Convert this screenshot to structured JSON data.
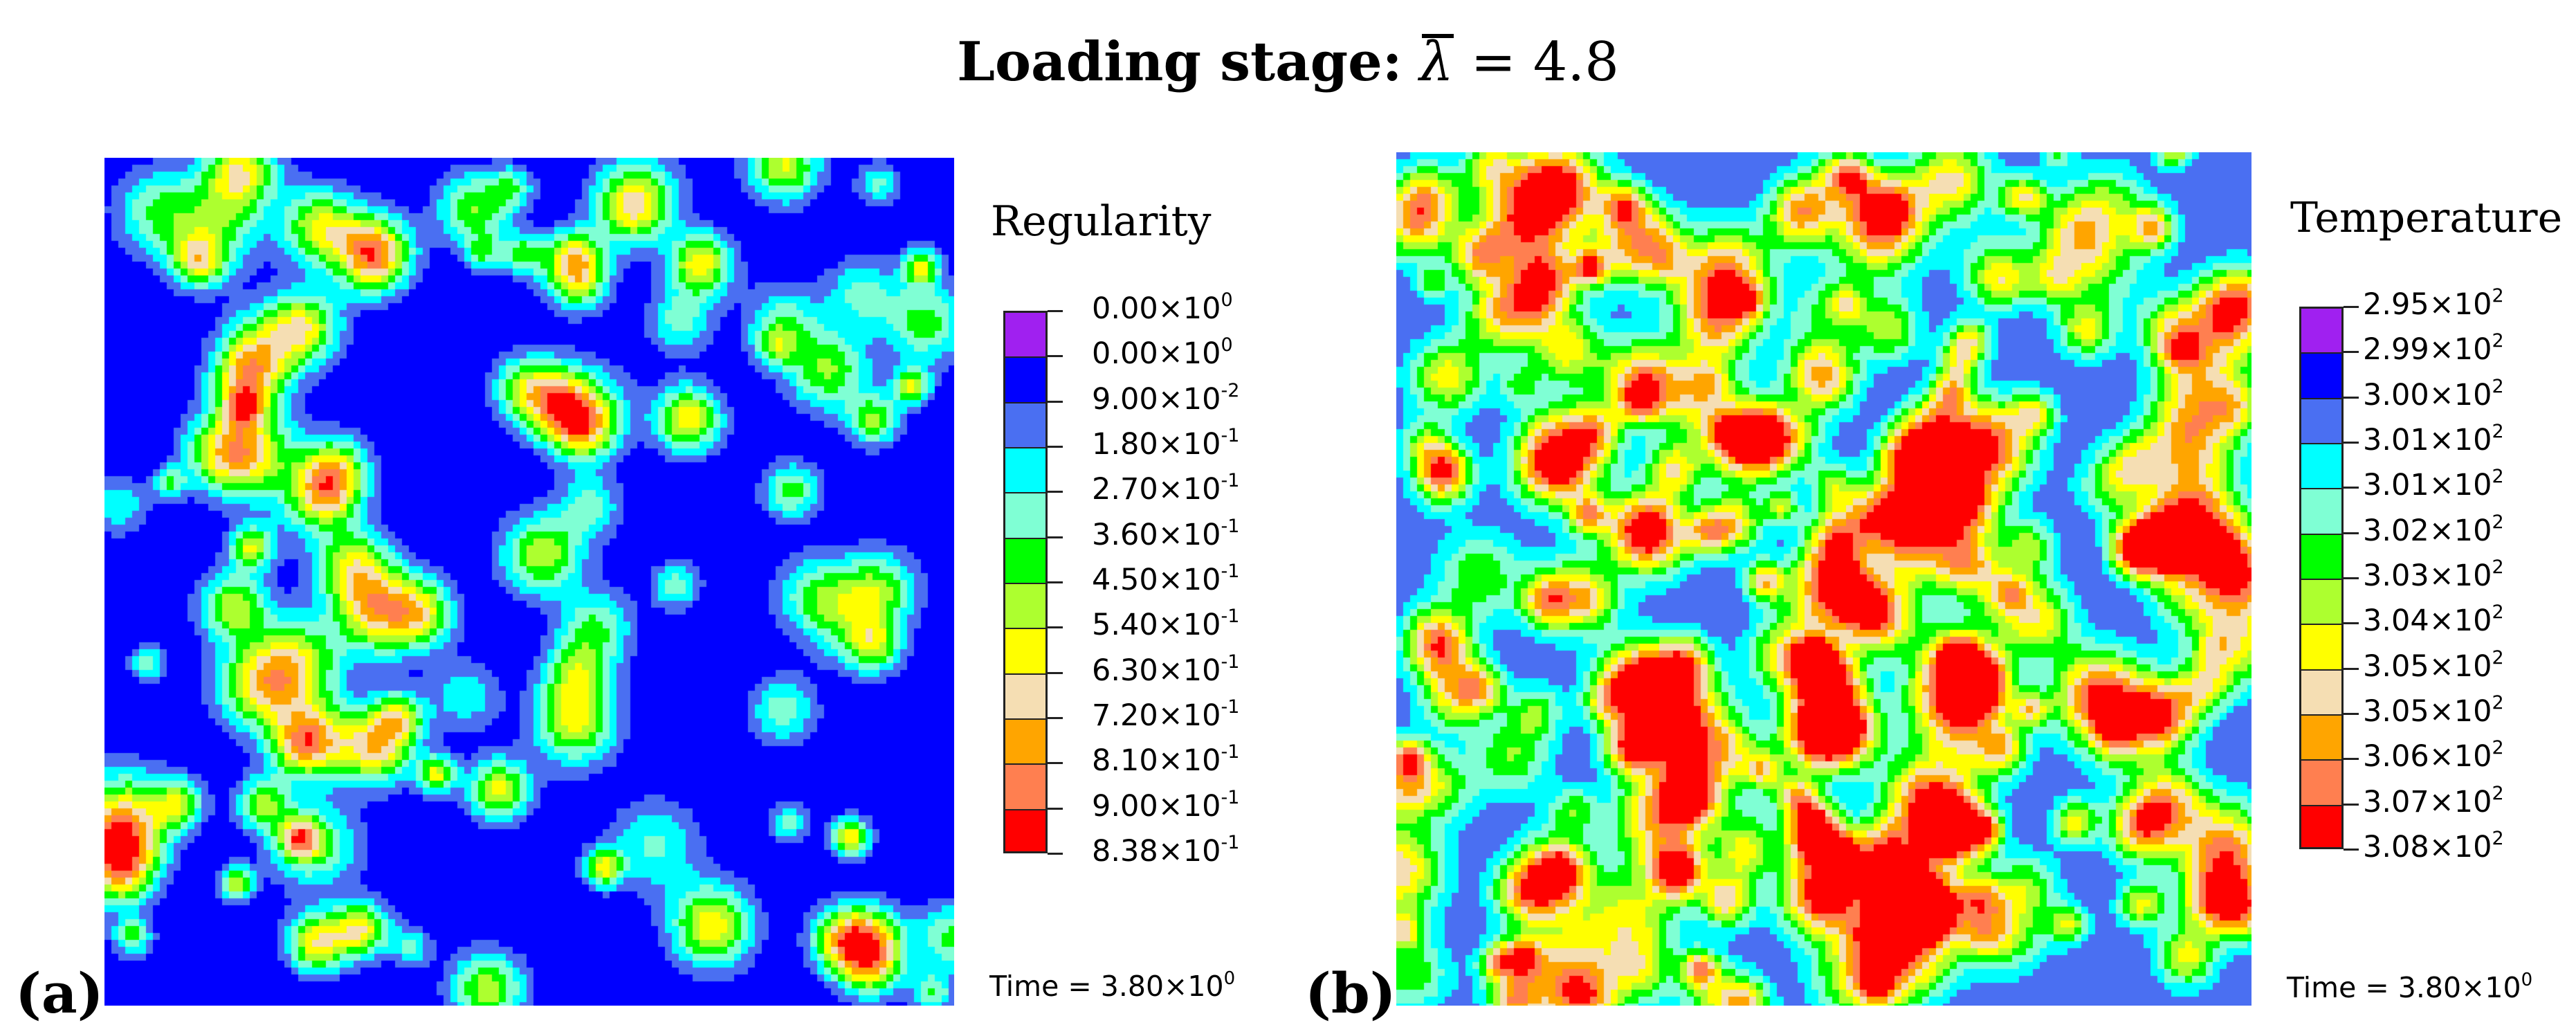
{
  "figure": {
    "title_label": "Loading stage:",
    "lambda_symbol": "λ",
    "lambda_equals": "= 4.8"
  },
  "panels": [
    {
      "tag": "(a)",
      "legend_title": "Regularity",
      "time_text": "Time = 3.80×10",
      "time_exp": "0",
      "field_base_color": "#0000f0",
      "background_level": 1,
      "spot_count": 95,
      "seed": 17,
      "legend": [
        {
          "mantissa": "0.00×10",
          "exp": "0",
          "color": "#a020f0"
        },
        {
          "mantissa": "0.00×10",
          "exp": "0",
          "color": "#0000ff"
        },
        {
          "mantissa": "9.00×10",
          "exp": "-2",
          "color": "#4a6ff2"
        },
        {
          "mantissa": "1.80×10",
          "exp": "-1",
          "color": "#00ffff"
        },
        {
          "mantissa": "2.70×10",
          "exp": "-1",
          "color": "#7fffd4"
        },
        {
          "mantissa": "3.60×10",
          "exp": "-1",
          "color": "#00ff00"
        },
        {
          "mantissa": "4.50×10",
          "exp": "-1",
          "color": "#adff2f"
        },
        {
          "mantissa": "5.40×10",
          "exp": "-1",
          "color": "#ffff00"
        },
        {
          "mantissa": "6.30×10",
          "exp": "-1",
          "color": "#f5deb3"
        },
        {
          "mantissa": "7.20×10",
          "exp": "-1",
          "color": "#ffa500"
        },
        {
          "mantissa": "8.10×10",
          "exp": "-1",
          "color": "#ff7f50"
        },
        {
          "mantissa": "9.00×10",
          "exp": "-1",
          "color": "#ff0000"
        },
        {
          "mantissa": "8.38×10",
          "exp": "-1",
          "color": null
        }
      ]
    },
    {
      "tag": "(b)",
      "legend_title": "Temperature",
      "time_text": "Time = 3.80×10",
      "time_exp": "0",
      "field_base_color": "#4a6ff2",
      "background_level": 2,
      "spot_count": 230,
      "seed": 42,
      "legend": [
        {
          "mantissa": "2.95×10",
          "exp": "2",
          "color": "#a020f0"
        },
        {
          "mantissa": "2.99×10",
          "exp": "2",
          "color": "#0000ff"
        },
        {
          "mantissa": "3.00×10",
          "exp": "2",
          "color": "#4a6ff2"
        },
        {
          "mantissa": "3.01×10",
          "exp": "2",
          "color": "#00ffff"
        },
        {
          "mantissa": "3.01×10",
          "exp": "2",
          "color": "#7fffd4"
        },
        {
          "mantissa": "3.02×10",
          "exp": "2",
          "color": "#00ff00"
        },
        {
          "mantissa": "3.03×10",
          "exp": "2",
          "color": "#adff2f"
        },
        {
          "mantissa": "3.04×10",
          "exp": "2",
          "color": "#ffff00"
        },
        {
          "mantissa": "3.05×10",
          "exp": "2",
          "color": "#f5deb3"
        },
        {
          "mantissa": "3.05×10",
          "exp": "2",
          "color": "#ffa500"
        },
        {
          "mantissa": "3.06×10",
          "exp": "2",
          "color": "#ff7f50"
        },
        {
          "mantissa": "3.07×10",
          "exp": "2",
          "color": "#ff0000"
        },
        {
          "mantissa": "3.08×10",
          "exp": "2",
          "color": null
        }
      ]
    }
  ]
}
